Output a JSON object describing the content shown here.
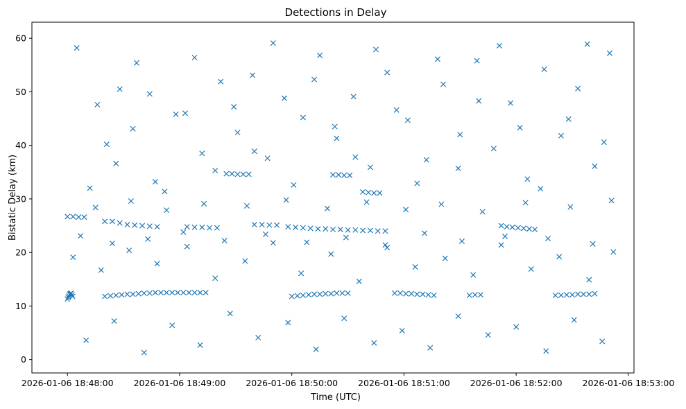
{
  "chart_data": {
    "type": "scatter",
    "title": "Detections in Delay",
    "xlabel": "Time (UTC)",
    "ylabel": "Bistatic Delay (km)",
    "marker": "x",
    "color": "#1f77b4",
    "grid": false,
    "legend": "none",
    "xlim": [
      "2026-01-06 18:47:41",
      "2026-01-06 18:53:03"
    ],
    "ylim": [
      -2.5,
      63
    ],
    "xticks": [
      "2026-01-06 18:48:00",
      "2026-01-06 18:49:00",
      "2026-01-06 18:50:00",
      "2026-01-06 18:51:00",
      "2026-01-06 18:52:00",
      "2026-01-06 18:53:00"
    ],
    "yticks": [
      0,
      10,
      20,
      30,
      40,
      50,
      60
    ],
    "series": [
      {
        "values": [
          [
            "18:48:00.0",
            11.3
          ],
          [
            "18:48:00.4",
            11.6
          ],
          [
            "18:48:00.8",
            11.9
          ],
          [
            "18:48:01.2",
            12.2
          ],
          [
            "18:48:01.6",
            12.3
          ],
          [
            "18:48:02.0",
            12.4
          ],
          [
            "18:48:02.4",
            12.1
          ],
          [
            "18:48:02.8",
            11.8
          ],
          [
            "18:48:20.0",
            11.8
          ],
          [
            "18:48:23.0",
            11.9
          ],
          [
            "18:48:26.0",
            12.0
          ],
          [
            "18:48:29.0",
            12.1
          ],
          [
            "18:48:32.0",
            12.2
          ],
          [
            "18:48:35.0",
            12.2
          ],
          [
            "18:48:38.0",
            12.3
          ],
          [
            "18:48:41.0",
            12.4
          ],
          [
            "18:48:44.0",
            12.4
          ],
          [
            "18:48:47.0",
            12.5
          ],
          [
            "18:48:50.0",
            12.5
          ],
          [
            "18:48:53.0",
            12.5
          ],
          [
            "18:48:56.0",
            12.5
          ],
          [
            "18:48:59.0",
            12.5
          ],
          [
            "18:49:02.0",
            12.5
          ],
          [
            "18:49:05.0",
            12.5
          ],
          [
            "18:49:08.0",
            12.5
          ],
          [
            "18:49:11.0",
            12.5
          ],
          [
            "18:49:14.0",
            12.5
          ],
          [
            "18:50:00.0",
            11.8
          ],
          [
            "18:50:03.0",
            11.9
          ],
          [
            "18:50:06.0",
            12.0
          ],
          [
            "18:50:09.0",
            12.1
          ],
          [
            "18:50:12.0",
            12.2
          ],
          [
            "18:50:15.0",
            12.2
          ],
          [
            "18:50:18.0",
            12.3
          ],
          [
            "18:50:21.0",
            12.3
          ],
          [
            "18:50:24.0",
            12.4
          ],
          [
            "18:50:27.0",
            12.4
          ],
          [
            "18:50:30.0",
            12.4
          ],
          [
            "18:50:55.0",
            12.4
          ],
          [
            "18:50:58.0",
            12.4
          ],
          [
            "18:51:01.0",
            12.3
          ],
          [
            "18:51:04.0",
            12.3
          ],
          [
            "18:51:07.0",
            12.2
          ],
          [
            "18:51:10.0",
            12.2
          ],
          [
            "18:51:13.0",
            12.1
          ],
          [
            "18:51:16.0",
            12.0
          ],
          [
            "18:51:35.0",
            12.0
          ],
          [
            "18:51:38.0",
            12.1
          ],
          [
            "18:51:41.0",
            12.1
          ],
          [
            "18:52:21.0",
            12.0
          ],
          [
            "18:52:24.0",
            12.0
          ],
          [
            "18:52:27.0",
            12.1
          ],
          [
            "18:52:30.0",
            12.1
          ],
          [
            "18:52:33.0",
            12.2
          ],
          [
            "18:52:36.0",
            12.2
          ],
          [
            "18:52:39.0",
            12.2
          ],
          [
            "18:52:42.0",
            12.3
          ],
          [
            "18:48:00.0",
            26.7
          ],
          [
            "18:48:03.0",
            26.7
          ],
          [
            "18:48:06.0",
            26.6
          ],
          [
            "18:48:09.0",
            26.6
          ],
          [
            "18:48:20.0",
            25.8
          ],
          [
            "18:48:24.0",
            25.8
          ],
          [
            "18:48:28.0",
            25.5
          ],
          [
            "18:48:32.0",
            25.2
          ],
          [
            "18:48:36.0",
            25.1
          ],
          [
            "18:48:40.0",
            25.0
          ],
          [
            "18:48:44.0",
            24.9
          ],
          [
            "18:48:48.0",
            24.8
          ],
          [
            "18:49:04.0",
            24.8
          ],
          [
            "18:49:08.0",
            24.7
          ],
          [
            "18:49:12.0",
            24.7
          ],
          [
            "18:49:16.0",
            24.6
          ],
          [
            "18:49:20.0",
            24.6
          ],
          [
            "18:49:40.0",
            25.2
          ],
          [
            "18:49:44.0",
            25.2
          ],
          [
            "18:49:48.0",
            25.1
          ],
          [
            "18:49:52.0",
            25.1
          ],
          [
            "18:49:58.0",
            24.8
          ],
          [
            "18:50:02.0",
            24.7
          ],
          [
            "18:50:06.0",
            24.6
          ],
          [
            "18:50:10.0",
            24.5
          ],
          [
            "18:50:14.0",
            24.4
          ],
          [
            "18:50:18.0",
            24.4
          ],
          [
            "18:50:22.0",
            24.3
          ],
          [
            "18:50:26.0",
            24.3
          ],
          [
            "18:50:30.0",
            24.2
          ],
          [
            "18:50:34.0",
            24.2
          ],
          [
            "18:50:38.0",
            24.1
          ],
          [
            "18:50:42.0",
            24.1
          ],
          [
            "18:50:46.0",
            24.0
          ],
          [
            "18:50:50.0",
            24.0
          ],
          [
            "18:51:52.0",
            25.0
          ],
          [
            "18:51:55.0",
            24.8
          ],
          [
            "18:51:58.0",
            24.7
          ],
          [
            "18:52:01.0",
            24.6
          ],
          [
            "18:52:04.0",
            24.5
          ],
          [
            "18:52:07.0",
            24.4
          ],
          [
            "18:52:10.0",
            24.3
          ],
          [
            "18:49:25.0",
            34.7
          ],
          [
            "18:49:28.0",
            34.7
          ],
          [
            "18:49:31.0",
            34.6
          ],
          [
            "18:49:34.0",
            34.6
          ],
          [
            "18:49:37.0",
            34.6
          ],
          [
            "18:50:22.0",
            34.5
          ],
          [
            "18:50:25.0",
            34.5
          ],
          [
            "18:50:28.0",
            34.4
          ],
          [
            "18:50:31.0",
            34.4
          ],
          [
            "18:50:38.0",
            31.3
          ],
          [
            "18:50:41.0",
            31.2
          ],
          [
            "18:50:44.0",
            31.1
          ],
          [
            "18:50:47.0",
            31.1
          ],
          [
            "18:48:12.0",
            32.0
          ],
          [
            "18:48:21.0",
            40.2
          ],
          [
            "18:48:28.0",
            50.5
          ],
          [
            "18:48:35.0",
            43.1
          ],
          [
            "18:48:44.0",
            49.6
          ],
          [
            "18:48:52.0",
            31.4
          ],
          [
            "18:49:03.0",
            46.0
          ],
          [
            "18:49:12.0",
            38.5
          ],
          [
            "18:49:22.0",
            51.9
          ],
          [
            "18:49:31.0",
            42.4
          ],
          [
            "18:49:39.0",
            53.1
          ],
          [
            "18:49:47.0",
            37.6
          ],
          [
            "18:49:56.0",
            48.8
          ],
          [
            "18:50:06.0",
            45.2
          ],
          [
            "18:50:15.0",
            56.8
          ],
          [
            "18:50:24.0",
            41.3
          ],
          [
            "18:50:33.0",
            49.1
          ],
          [
            "18:50:42.0",
            35.9
          ],
          [
            "18:50:51.0",
            53.6
          ],
          [
            "18:51:02.0",
            44.7
          ],
          [
            "18:51:12.0",
            37.3
          ],
          [
            "18:51:21.0",
            51.4
          ],
          [
            "18:51:30.0",
            42.0
          ],
          [
            "18:51:39.0",
            55.8
          ],
          [
            "18:51:48.0",
            39.4
          ],
          [
            "18:51:57.0",
            47.9
          ],
          [
            "18:52:06.0",
            33.7
          ],
          [
            "18:52:15.0",
            54.2
          ],
          [
            "18:52:24.0",
            41.8
          ],
          [
            "18:52:33.0",
            50.6
          ],
          [
            "18:52:42.0",
            36.1
          ],
          [
            "18:52:50.0",
            57.2
          ],
          [
            "18:48:05.0",
            58.2
          ],
          [
            "18:48:16.0",
            47.6
          ],
          [
            "18:48:26.0",
            36.6
          ],
          [
            "18:48:37.0",
            55.4
          ],
          [
            "18:48:47.0",
            33.2
          ],
          [
            "18:48:58.0",
            45.8
          ],
          [
            "18:49:08.0",
            56.4
          ],
          [
            "18:49:19.0",
            35.3
          ],
          [
            "18:49:29.0",
            47.2
          ],
          [
            "18:49:40.0",
            38.9
          ],
          [
            "18:49:50.0",
            59.1
          ],
          [
            "18:50:01.0",
            32.6
          ],
          [
            "18:50:12.0",
            52.3
          ],
          [
            "18:50:23.0",
            43.5
          ],
          [
            "18:50:34.0",
            37.8
          ],
          [
            "18:50:45.0",
            57.9
          ],
          [
            "18:50:56.0",
            46.6
          ],
          [
            "18:51:07.0",
            32.9
          ],
          [
            "18:51:18.0",
            56.1
          ],
          [
            "18:51:29.0",
            35.7
          ],
          [
            "18:51:40.0",
            48.3
          ],
          [
            "18:51:51.0",
            58.6
          ],
          [
            "18:52:02.0",
            43.3
          ],
          [
            "18:52:13.0",
            31.9
          ],
          [
            "18:52:28.0",
            44.9
          ],
          [
            "18:52:38.0",
            58.9
          ],
          [
            "18:52:47.0",
            40.6
          ],
          [
            "18:48:03.0",
            19.1
          ],
          [
            "18:48:10.0",
            3.6
          ],
          [
            "18:48:18.0",
            16.7
          ],
          [
            "18:48:25.0",
            7.2
          ],
          [
            "18:48:33.0",
            20.4
          ],
          [
            "18:48:41.0",
            1.3
          ],
          [
            "18:48:48.0",
            17.9
          ],
          [
            "18:48:56.0",
            6.4
          ],
          [
            "18:49:04.0",
            21.1
          ],
          [
            "18:49:11.0",
            2.7
          ],
          [
            "18:49:19.0",
            15.2
          ],
          [
            "18:49:27.0",
            8.6
          ],
          [
            "18:49:35.0",
            18.4
          ],
          [
            "18:49:42.0",
            4.1
          ],
          [
            "18:49:50.0",
            21.8
          ],
          [
            "18:49:58.0",
            6.9
          ],
          [
            "18:50:05.0",
            16.1
          ],
          [
            "18:50:13.0",
            1.9
          ],
          [
            "18:50:21.0",
            19.7
          ],
          [
            "18:50:28.0",
            7.7
          ],
          [
            "18:50:36.0",
            14.6
          ],
          [
            "18:50:44.0",
            3.1
          ],
          [
            "18:50:51.0",
            20.9
          ],
          [
            "18:50:59.0",
            5.4
          ],
          [
            "18:51:06.0",
            17.3
          ],
          [
            "18:51:14.0",
            2.2
          ],
          [
            "18:51:22.0",
            18.9
          ],
          [
            "18:51:29.0",
            8.1
          ],
          [
            "18:51:37.0",
            15.8
          ],
          [
            "18:51:45.0",
            4.6
          ],
          [
            "18:51:52.0",
            21.4
          ],
          [
            "18:52:00.0",
            6.1
          ],
          [
            "18:52:08.0",
            16.9
          ],
          [
            "18:52:16.0",
            1.6
          ],
          [
            "18:52:23.0",
            19.2
          ],
          [
            "18:52:31.0",
            7.4
          ],
          [
            "18:52:39.0",
            14.9
          ],
          [
            "18:52:46.0",
            3.4
          ],
          [
            "18:52:52.0",
            20.1
          ],
          [
            "18:48:07.0",
            23.1
          ],
          [
            "18:48:15.0",
            28.4
          ],
          [
            "18:48:24.0",
            21.7
          ],
          [
            "18:48:34.0",
            29.6
          ],
          [
            "18:48:43.0",
            22.5
          ],
          [
            "18:48:53.0",
            27.9
          ],
          [
            "18:49:02.0",
            23.8
          ],
          [
            "18:49:13.0",
            29.1
          ],
          [
            "18:49:24.0",
            22.2
          ],
          [
            "18:49:36.0",
            28.7
          ],
          [
            "18:49:46.0",
            23.4
          ],
          [
            "18:49:57.0",
            29.8
          ],
          [
            "18:50:08.0",
            21.9
          ],
          [
            "18:50:19.0",
            28.2
          ],
          [
            "18:50:29.0",
            22.8
          ],
          [
            "18:50:40.0",
            29.4
          ],
          [
            "18:50:50.0",
            21.4
          ],
          [
            "18:51:01.0",
            28.0
          ],
          [
            "18:51:11.0",
            23.6
          ],
          [
            "18:51:20.0",
            29.0
          ],
          [
            "18:51:31.0",
            22.1
          ],
          [
            "18:51:42.0",
            27.6
          ],
          [
            "18:51:54.0",
            23.0
          ],
          [
            "18:52:05.0",
            29.3
          ],
          [
            "18:52:17.0",
            22.6
          ],
          [
            "18:52:29.0",
            28.5
          ],
          [
            "18:52:41.0",
            21.6
          ],
          [
            "18:52:51.0",
            29.7
          ]
        ]
      }
    ]
  }
}
